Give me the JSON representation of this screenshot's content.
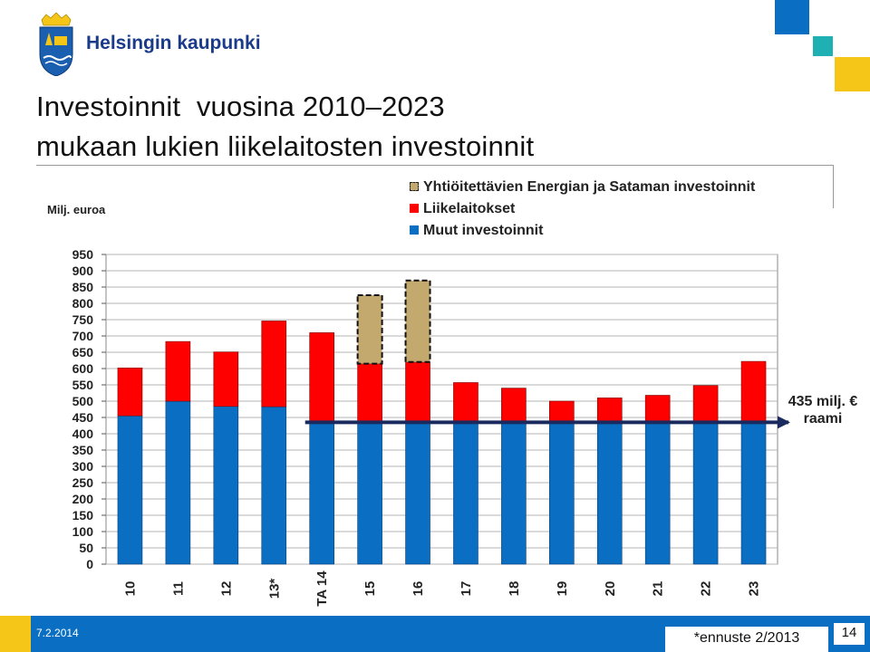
{
  "header": {
    "org_name": "Helsingin kaupunki",
    "title_line1": "Investoinnit  vuosina 2010–2023",
    "title_line2": "mukaan lukien liikelaitosten investoinnit"
  },
  "colors": {
    "blue": "#0a6fc2",
    "red": "#ff0000",
    "tan": "#c4a96f",
    "navy_arrow": "#1b2a5e",
    "yellow": "#f5c518",
    "teal": "#1eb0b2",
    "title_blue": "#1a3a8a"
  },
  "footer": {
    "date": "7.2.2014",
    "forecast_note": "*ennuste 2/2013",
    "page_number": "14"
  },
  "chart_data": {
    "type": "bar",
    "stacked": true,
    "unit_label": "Milj. euroa",
    "categories": [
      "10",
      "11",
      "12",
      "13*",
      "TA 14",
      "15",
      "16",
      "17",
      "18",
      "19",
      "20",
      "21",
      "22",
      "23"
    ],
    "series": [
      {
        "name": "Muut investoinnit",
        "color": "#0a6fc2",
        "values": [
          455,
          500,
          484,
          483,
          435,
          435,
          435,
          435,
          435,
          435,
          435,
          435,
          435,
          435
        ]
      },
      {
        "name": "Liikelaitokset",
        "color": "#ff0000",
        "values": [
          147,
          183,
          167,
          263,
          275,
          180,
          185,
          122,
          105,
          65,
          75,
          83,
          113,
          187
        ]
      },
      {
        "name": "Yhtiöitettävien Energian ja Sataman investoinnit",
        "color": "#c4a96f",
        "dashed": true,
        "values": [
          0,
          0,
          0,
          0,
          0,
          210,
          250,
          0,
          0,
          0,
          0,
          0,
          0,
          0
        ]
      }
    ],
    "legend_order": [
      "Yhtiöitettävien Energian ja Sataman investoinnit",
      "Liikelaitokset",
      "Muut investoinnit"
    ],
    "yticks": [
      950,
      900,
      850,
      800,
      750,
      700,
      650,
      600,
      550,
      500,
      450,
      400,
      350,
      300,
      250,
      200,
      150,
      100,
      50,
      0
    ],
    "ylim": [
      0,
      950
    ],
    "grid": true,
    "annotation": {
      "value": 435,
      "label_line1": "435 milj. €",
      "label_line2": "raami"
    }
  }
}
